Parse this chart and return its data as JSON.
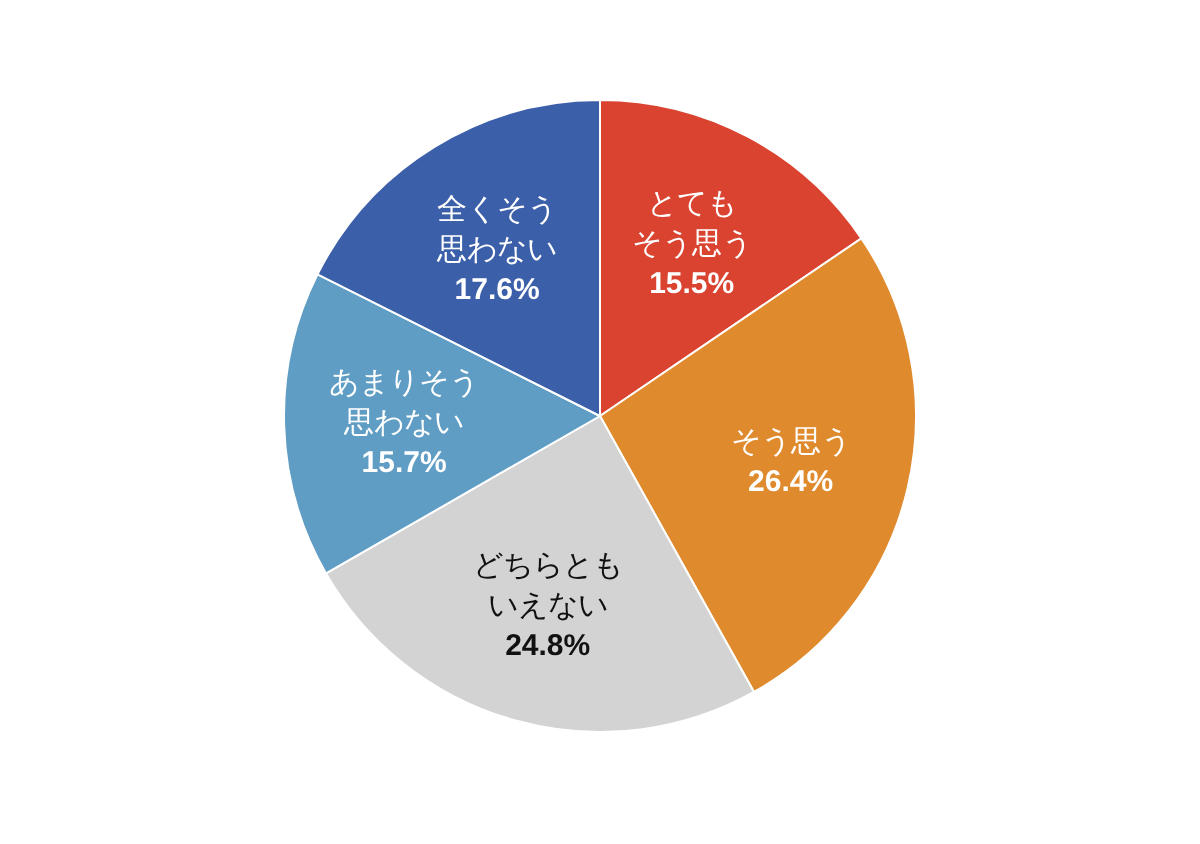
{
  "chart_data": {
    "type": "pie",
    "categories": [
      "とてもそう思う",
      "そう思う",
      "どちらともいえない",
      "あまりそう思わない",
      "全くそう思わない"
    ],
    "values": [
      15.5,
      26.4,
      24.8,
      15.7,
      17.6
    ],
    "value_labels": [
      "15.5%",
      "26.4%",
      "24.8%",
      "15.7%",
      "17.6%"
    ],
    "colors": [
      "#d9432f",
      "#e08a2e",
      "#d3d3d3",
      "#5f9dc4",
      "#3b5fa8"
    ],
    "legend": false
  }
}
